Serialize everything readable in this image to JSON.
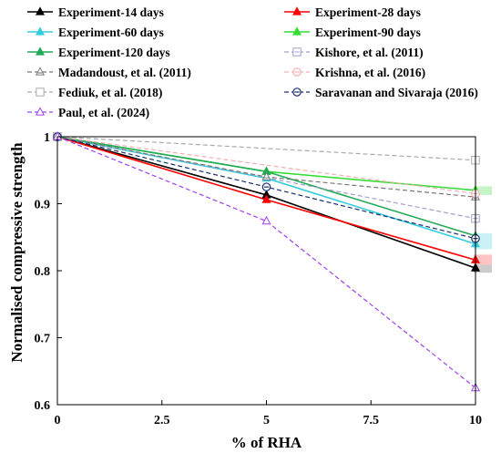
{
  "chart_data": {
    "type": "line",
    "xlabel": "% of RHA",
    "ylabel": "Normalised compressive strength",
    "xlim": [
      0,
      10
    ],
    "ylim": [
      0.6,
      1.0
    ],
    "xticks": [
      "0",
      "2.5",
      "5",
      "7.5",
      "10"
    ],
    "yticks": [
      "0.6",
      "0.7",
      "0.8",
      "0.9",
      "1"
    ],
    "grid": false,
    "legend_position": "top",
    "series": [
      {
        "name": "Experiment-14 days",
        "x": [
          0,
          5,
          10
        ],
        "values": [
          1.0,
          0.913,
          0.804
        ],
        "color": "#000000",
        "style": "solid",
        "marker": "triangle-filled",
        "band": [
          0.797,
          0.811
        ],
        "band_color": "#cccccc"
      },
      {
        "name": "Experiment-28 days",
        "x": [
          0,
          5,
          10
        ],
        "values": [
          1.0,
          0.906,
          0.816
        ],
        "color": "#ff0000",
        "style": "solid",
        "marker": "triangle-filled",
        "band": [
          0.809,
          0.824
        ],
        "band_color": "#ffc4c4"
      },
      {
        "name": "Experiment-60 days",
        "x": [
          0,
          5,
          10
        ],
        "values": [
          1.0,
          0.938,
          0.84
        ],
        "color": "#33ccdd",
        "style": "solid",
        "marker": "triangle-filled",
        "band": [
          0.832,
          0.856
        ],
        "band_color": "#c8f2f6"
      },
      {
        "name": "Experiment-90 days",
        "x": [
          0,
          5,
          10
        ],
        "values": [
          1.0,
          0.948,
          0.92
        ],
        "color": "#33dd33",
        "style": "solid",
        "marker": "triangle-filled",
        "band": [
          0.913,
          0.926
        ],
        "band_color": "#c6f4c6"
      },
      {
        "name": "Experiment-120 days",
        "x": [
          0,
          5,
          10
        ],
        "values": [
          1.0,
          0.948,
          0.852
        ],
        "color": "#22aa55",
        "style": "solid",
        "marker": "triangle-filled"
      },
      {
        "name": "Kishore, et al. (2011)",
        "x": [
          0,
          10
        ],
        "values": [
          1.0,
          0.878
        ],
        "color": "#a0a0cc",
        "style": "dashed",
        "marker": "square-minus"
      },
      {
        "name": "Madandoust, et al. (2011)",
        "x": [
          0,
          5,
          10
        ],
        "values": [
          1.0,
          0.94,
          0.91
        ],
        "color": "#777777",
        "style": "dashed",
        "marker": "triangle-minus"
      },
      {
        "name": "Krishna, et al. (2016)",
        "x": [
          0,
          10
        ],
        "values": [
          1.0,
          0.915
        ],
        "color": "#f0b0b0",
        "style": "dashed",
        "marker": "circle-minus"
      },
      {
        "name": "Fediuk, et al. (2018)",
        "x": [
          0,
          10
        ],
        "values": [
          1.0,
          0.965
        ],
        "color": "#aaaaaa",
        "style": "dashed",
        "marker": "square-open"
      },
      {
        "name": "Saravanan and Sivaraja (2016)",
        "x": [
          0,
          5,
          10
        ],
        "values": [
          1.0,
          0.925,
          0.848
        ],
        "color": "#1a2f6e",
        "style": "dashed",
        "marker": "circle-minus"
      },
      {
        "name": "Paul, et al. (2024)",
        "x": [
          0,
          5,
          10
        ],
        "values": [
          1.0,
          0.874,
          0.625
        ],
        "color": "#a040ee",
        "style": "dashed",
        "marker": "triangle-open"
      }
    ]
  }
}
